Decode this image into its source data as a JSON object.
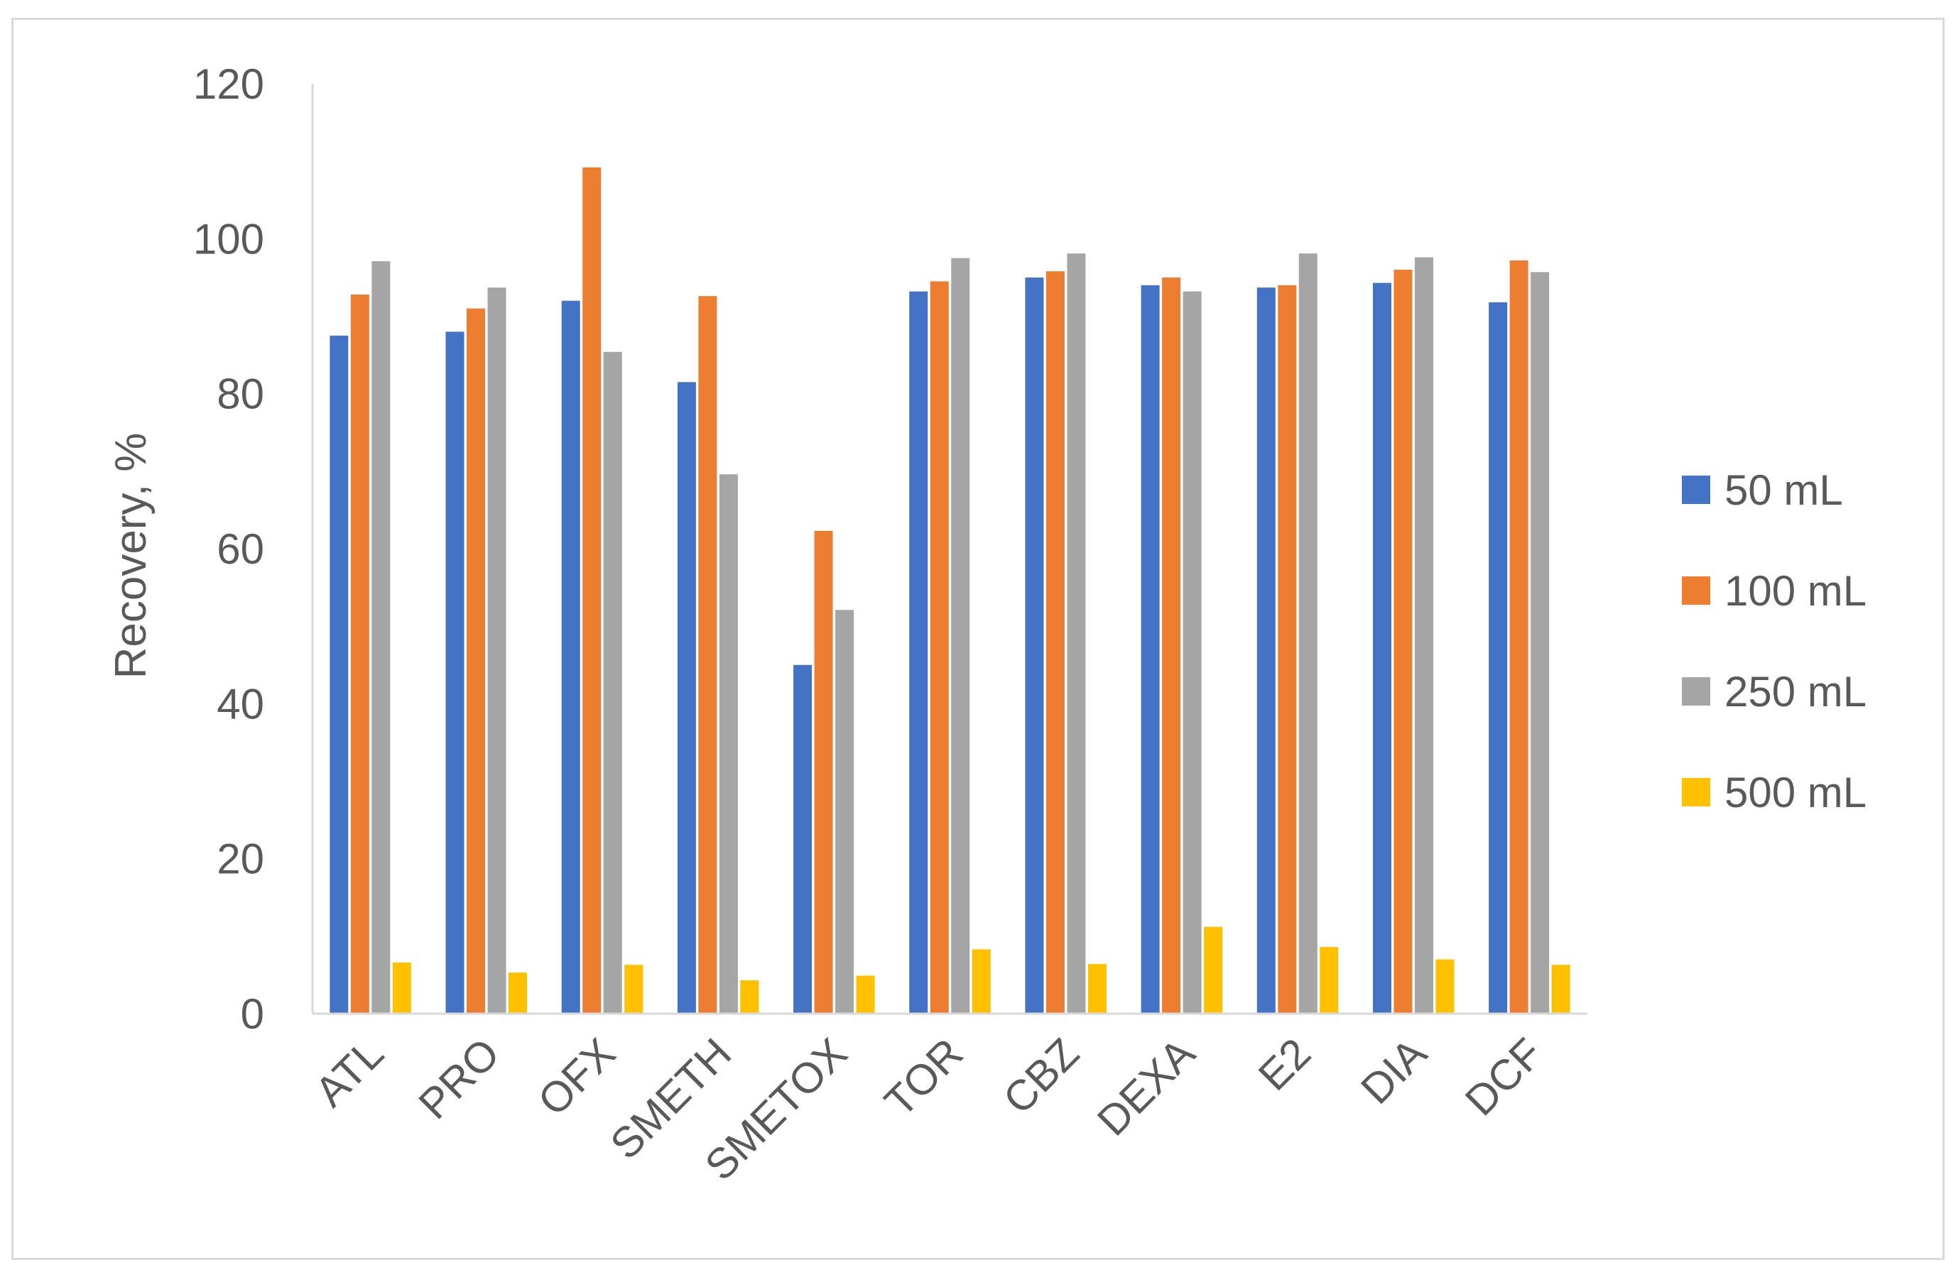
{
  "chart_data": {
    "type": "bar",
    "title": "",
    "xlabel": "",
    "ylabel": "Recovery, %",
    "ylim": [
      0,
      120
    ],
    "yticks": [
      0,
      20,
      40,
      60,
      80,
      100,
      120
    ],
    "grid": false,
    "legend_position": "right",
    "categories": [
      "ATL",
      "PRO",
      "OFX",
      "SMETH",
      "SMETOX",
      "TOR",
      "CBZ",
      "DEXA",
      "E2",
      "DIA",
      "DCF"
    ],
    "series": [
      {
        "name": "50 mL",
        "color": "#4472c4",
        "values": [
          87.5,
          88.0,
          92.0,
          81.5,
          45.0,
          93.2,
          95.0,
          94.0,
          93.7,
          94.3,
          91.8
        ]
      },
      {
        "name": "100 mL",
        "color": "#ed7d31",
        "values": [
          92.8,
          91.0,
          109.2,
          92.6,
          62.3,
          94.5,
          95.8,
          95.0,
          94.0,
          96.0,
          97.2
        ]
      },
      {
        "name": "250 mL",
        "color": "#a5a5a5",
        "values": [
          97.1,
          93.7,
          85.4,
          69.6,
          52.1,
          97.5,
          98.1,
          93.2,
          98.1,
          97.6,
          95.7
        ]
      },
      {
        "name": "500 mL",
        "color": "#ffc000",
        "values": [
          6.6,
          5.3,
          6.3,
          4.3,
          4.9,
          8.3,
          6.4,
          11.2,
          8.6,
          7.0,
          6.3
        ]
      }
    ]
  }
}
